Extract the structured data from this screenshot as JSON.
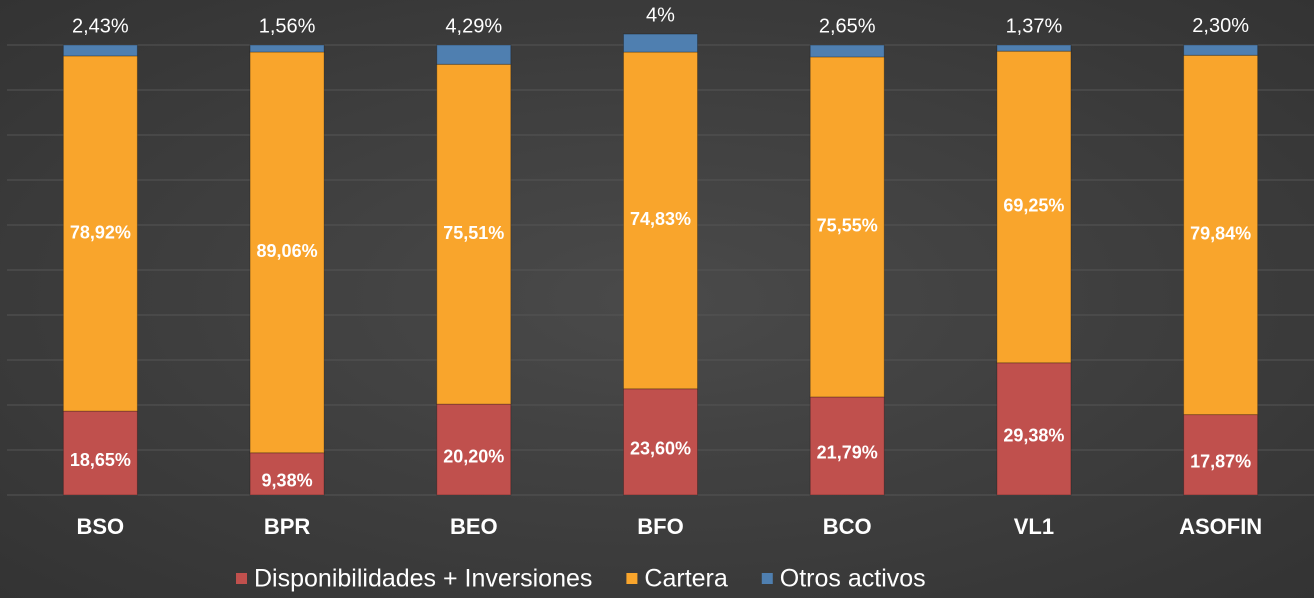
{
  "chart_data": {
    "type": "stacked_bar",
    "categories": [
      "BSO",
      "BPR",
      "BEO",
      "BFO",
      "BCO",
      "VL1",
      "ASOFIN"
    ],
    "series": [
      {
        "name": "Disponibilidades + Inversiones",
        "color": "#c0504d",
        "values": [
          18.65,
          9.38,
          20.2,
          23.6,
          21.79,
          29.38,
          17.87
        ],
        "value_labels": [
          "18,65%",
          "9,38%",
          "20,20%",
          "23,60%",
          "21,79%",
          "29,38%",
          "17,87%"
        ]
      },
      {
        "name": "Cartera",
        "color": "#f9a52c",
        "values": [
          78.92,
          89.06,
          75.51,
          74.83,
          75.55,
          69.25,
          79.84
        ],
        "value_labels": [
          "78,92%",
          "89,06%",
          "75,51%",
          "74,83%",
          "75,55%",
          "69,25%",
          "79,84%"
        ]
      },
      {
        "name": "Otros activos",
        "color": "#4f7fb0",
        "values": [
          2.43,
          1.56,
          4.29,
          4,
          2.65,
          1.37,
          2.3
        ],
        "value_labels": [
          "2,43%",
          "1,56%",
          "4,29%",
          "4%",
          "2,65%",
          "1,37%",
          "2,30%"
        ]
      }
    ],
    "ylim": [
      0,
      100
    ],
    "yticks": [
      0,
      10,
      20,
      30,
      40,
      50,
      60,
      70,
      80,
      90,
      100
    ],
    "grid": true,
    "legend": "bottom"
  }
}
